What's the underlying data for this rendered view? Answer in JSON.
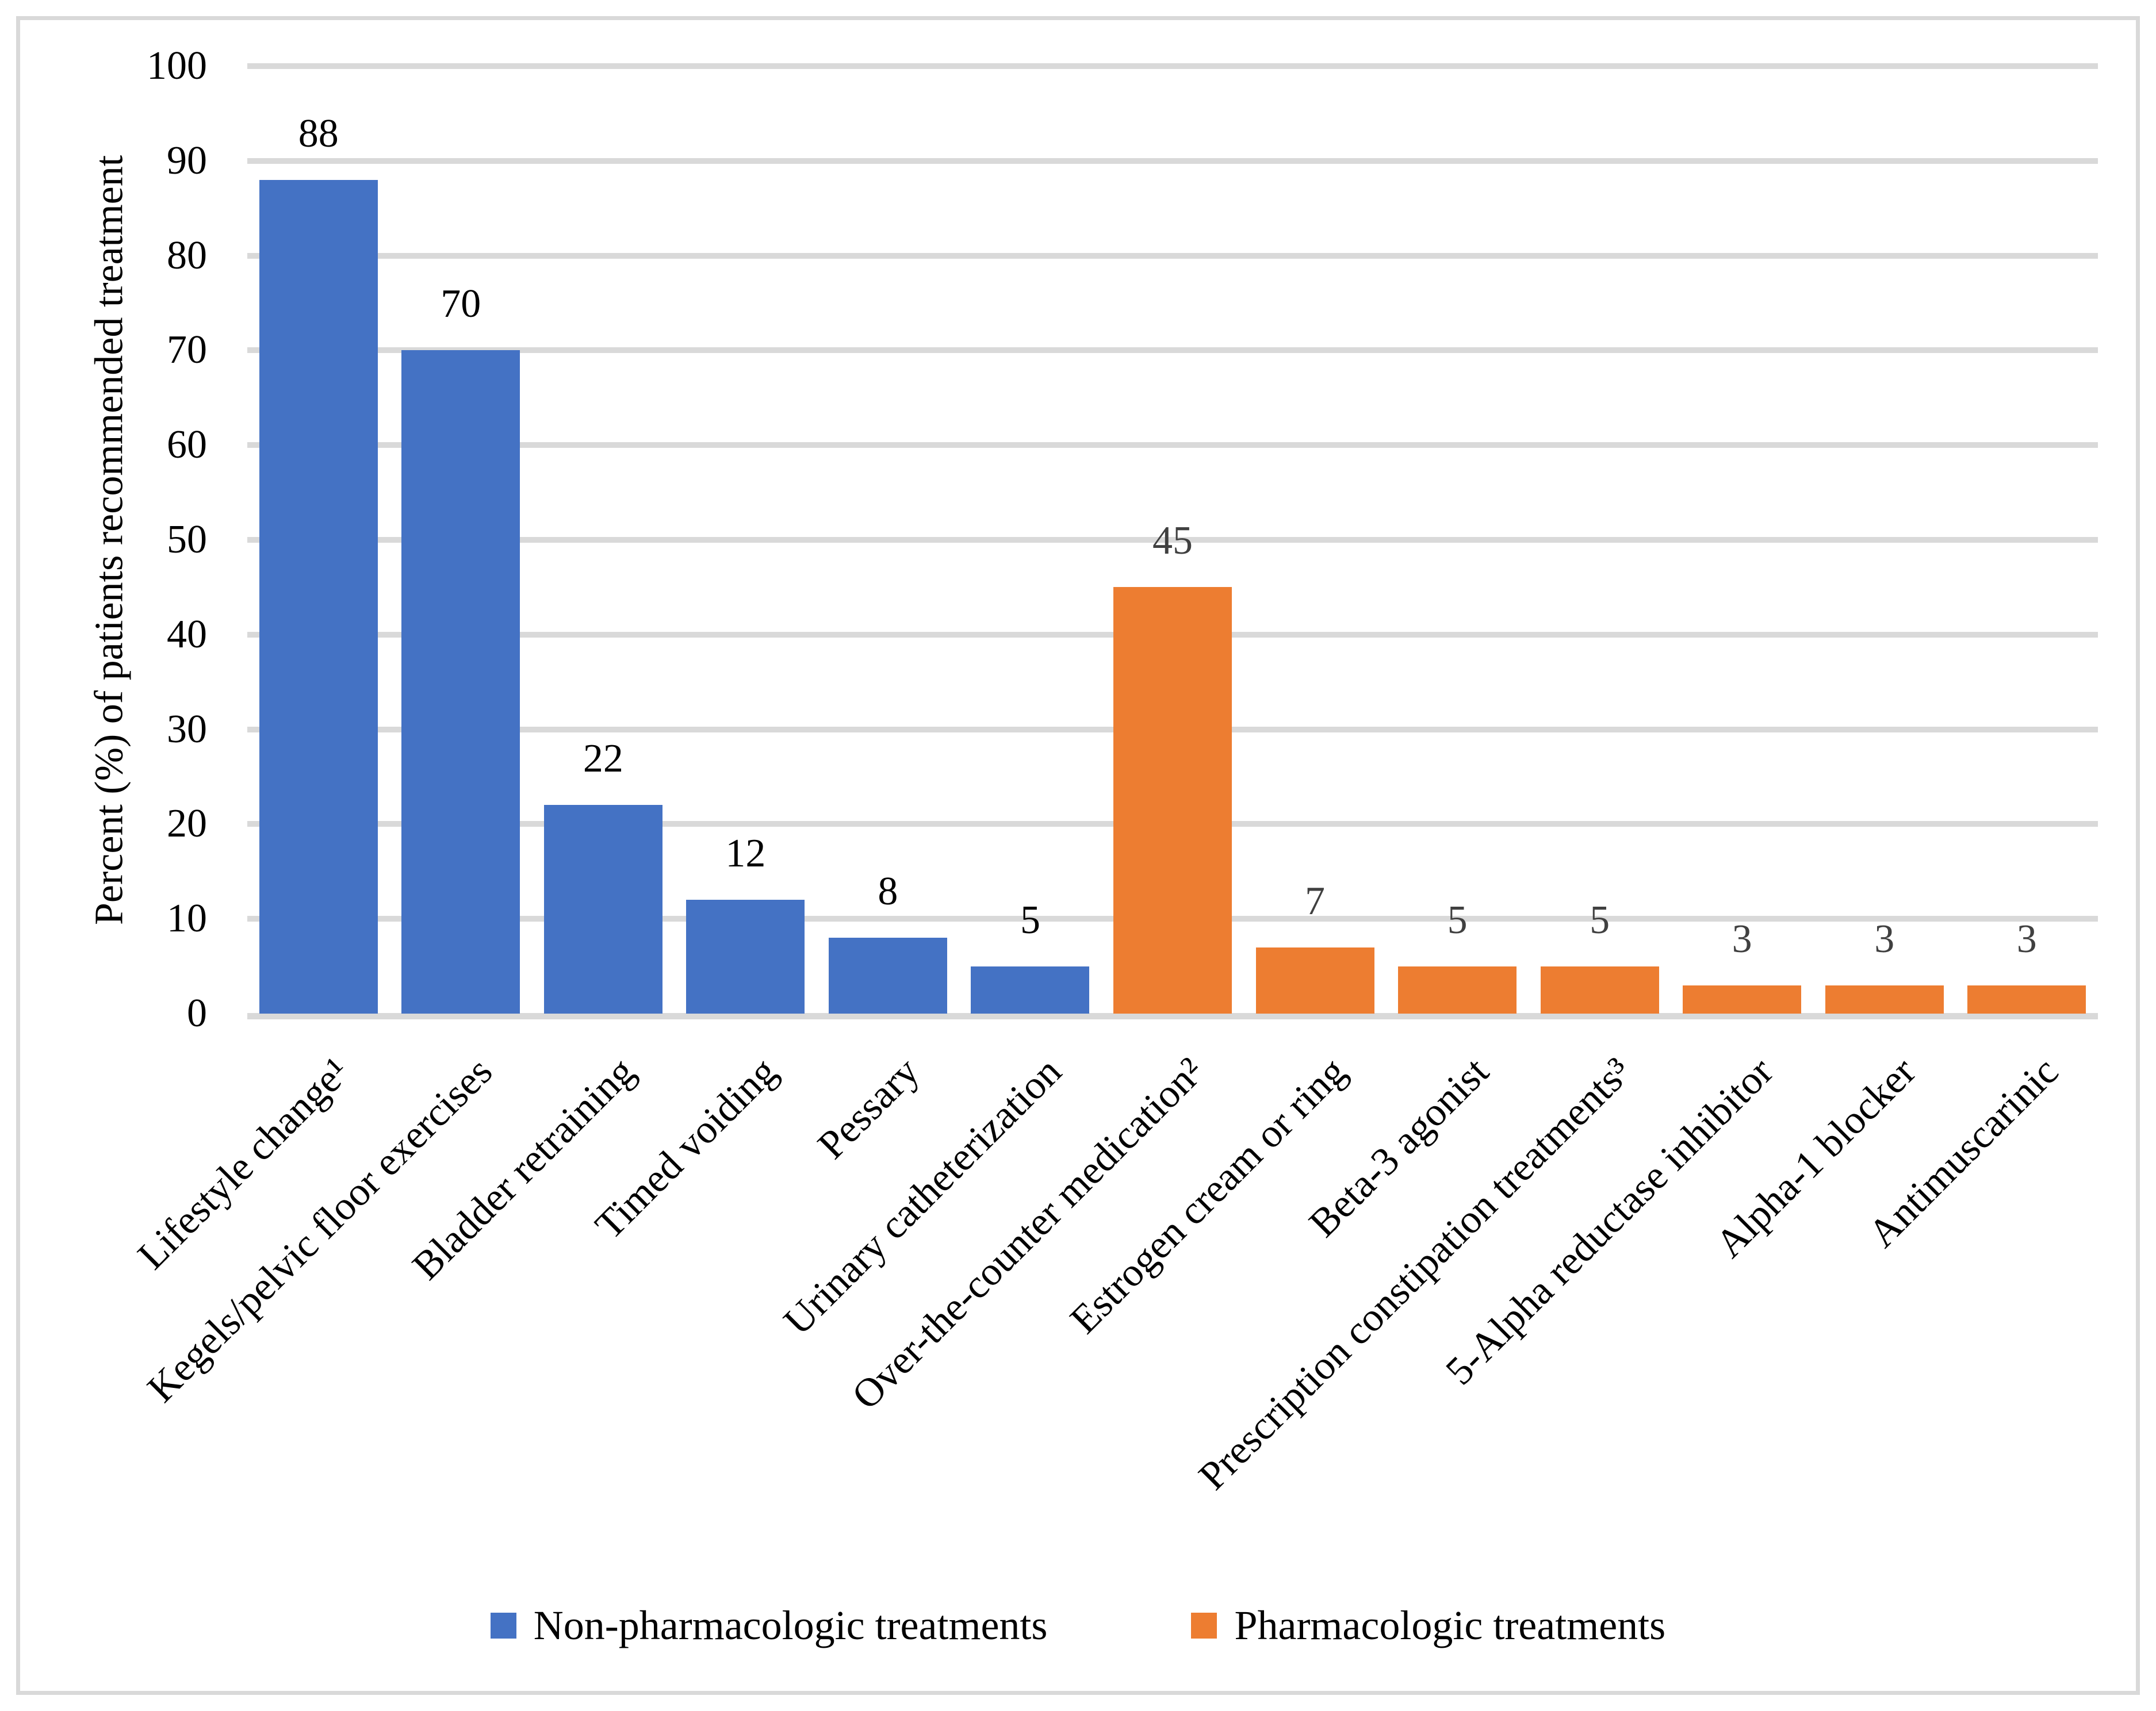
{
  "chart_data": {
    "type": "bar",
    "title": "",
    "xlabel": "",
    "ylabel": "Percent (%) of patients recommended treatment",
    "ylim": [
      0,
      100
    ],
    "ytick_step": 10,
    "yticks": [
      0,
      10,
      20,
      30,
      40,
      50,
      60,
      70,
      80,
      90,
      100
    ],
    "grid": true,
    "gridline_color": "#d9d9d9",
    "axis_line_color": "#d9d9d9",
    "legend_position": "bottom",
    "groups": [
      {
        "name": "Non-pharmacologic treatments",
        "color": "#4472c4",
        "data_label_color": "#000000"
      },
      {
        "name": "Pharmacologic treatments",
        "color": "#ed7d31",
        "data_label_color": "#404040"
      }
    ],
    "bars": [
      {
        "category": "Lifestyle change¹",
        "value": 88,
        "group": 0
      },
      {
        "category": "Kegels/pelvic floor exercises",
        "value": 70,
        "group": 0
      },
      {
        "category": "Bladder retraining",
        "value": 22,
        "group": 0
      },
      {
        "category": "Timed voiding",
        "value": 12,
        "group": 0
      },
      {
        "category": "Pessary",
        "value": 8,
        "group": 0
      },
      {
        "category": "Urinary catheterization",
        "value": 5,
        "group": 0
      },
      {
        "category": "Over-the-counter medication²",
        "value": 45,
        "group": 1
      },
      {
        "category": "Estrogen cream or ring",
        "value": 7,
        "group": 1
      },
      {
        "category": "Beta-3 agonist",
        "value": 5,
        "group": 1
      },
      {
        "category": "Prescription constipation treatments³",
        "value": 5,
        "group": 1
      },
      {
        "category": "5-Alpha reductase inhibitor",
        "value": 3,
        "group": 1
      },
      {
        "category": "Alpha-1 blocker",
        "value": 3,
        "group": 1
      },
      {
        "category": "Antimuscarinic",
        "value": 3,
        "group": 1
      }
    ]
  },
  "legend": {
    "items": [
      {
        "label": "Non-pharmacologic treatments",
        "color": "#4472c4"
      },
      {
        "label": "Pharmacologic treatments",
        "color": "#ed7d31"
      }
    ]
  }
}
